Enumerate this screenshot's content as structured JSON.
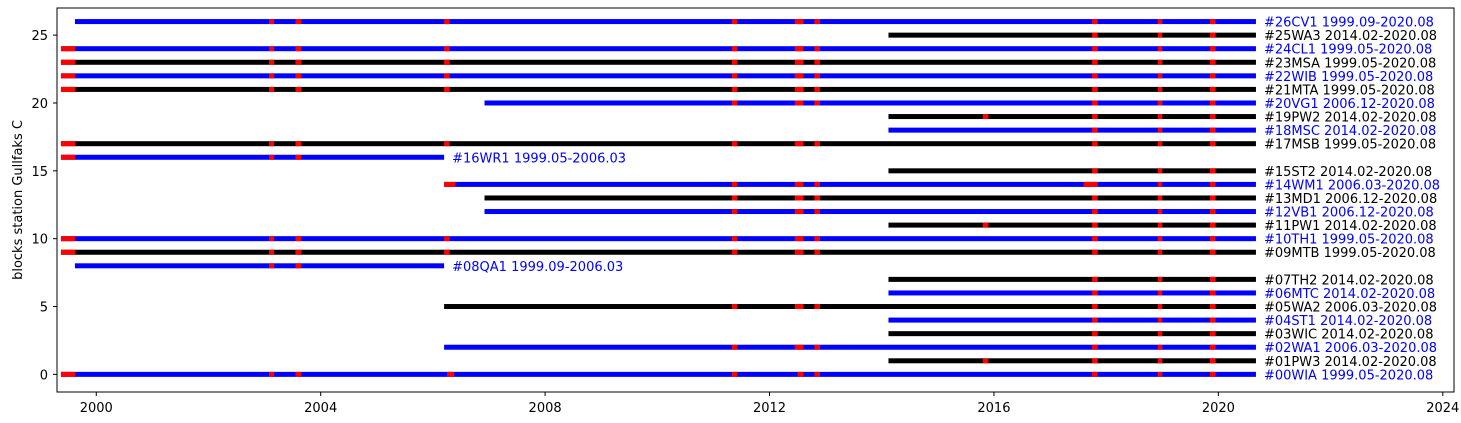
{
  "chart_data": {
    "type": "timeline",
    "ylabel": "blocks station Gullfaks C",
    "xlim": [
      1999.3,
      2024.2
    ],
    "ylim": [
      -1.3,
      27
    ],
    "xticks": [
      2000,
      2004,
      2008,
      2012,
      2016,
      2020,
      2024
    ],
    "yticks": [
      0,
      5,
      10,
      15,
      20,
      25
    ],
    "colors": {
      "blue": "#0000ff",
      "black": "#000000",
      "red": "#ff0000"
    },
    "stations": [
      {
        "y": 0,
        "label": "#00WIA 1999.05-2020.08",
        "color": "#0000ff",
        "start": 1999.37,
        "end": 2020.67,
        "gaps": [
          [
            1999.37,
            1999.62
          ],
          [
            2003.08,
            2003.17
          ],
          [
            2003.55,
            2003.65
          ],
          [
            2006.25,
            2006.38
          ],
          [
            2011.33,
            2011.42
          ],
          [
            2012.5,
            2012.6
          ],
          [
            2012.8,
            2012.9
          ],
          [
            2017.75,
            2017.85
          ],
          [
            2018.92,
            2019.0
          ],
          [
            2019.85,
            2019.95
          ]
        ]
      },
      {
        "y": 1,
        "label": "#01PW3 2014.02-2020.08",
        "color": "#000000",
        "start": 2014.12,
        "end": 2020.67,
        "gaps": [
          [
            2015.8,
            2015.9
          ],
          [
            2017.75,
            2017.85
          ],
          [
            2018.92,
            2019.0
          ],
          [
            2019.85,
            2019.95
          ]
        ]
      },
      {
        "y": 2,
        "label": "#02WA1 2006.03-2020.08",
        "color": "#0000ff",
        "start": 2006.2,
        "end": 2020.67,
        "gaps": [
          [
            2011.33,
            2011.42
          ],
          [
            2012.45,
            2012.6
          ],
          [
            2012.8,
            2012.9
          ],
          [
            2017.75,
            2017.85
          ],
          [
            2018.92,
            2019.0
          ],
          [
            2019.85,
            2019.95
          ]
        ]
      },
      {
        "y": 3,
        "label": "#03WIC 2014.02-2020.08",
        "color": "#000000",
        "start": 2014.12,
        "end": 2020.67,
        "gaps": [
          [
            2017.75,
            2017.85
          ],
          [
            2018.92,
            2019.0
          ],
          [
            2019.85,
            2019.95
          ]
        ]
      },
      {
        "y": 4,
        "label": "#04ST1 2014.02-2020.08",
        "color": "#0000ff",
        "start": 2014.12,
        "end": 2020.67,
        "gaps": [
          [
            2017.75,
            2017.85
          ],
          [
            2018.92,
            2019.0
          ],
          [
            2019.85,
            2019.95
          ]
        ]
      },
      {
        "y": 5,
        "label": "#05WA2 2006.03-2020.08",
        "color": "#000000",
        "start": 2006.2,
        "end": 2020.67,
        "gaps": [
          [
            2011.33,
            2011.42
          ],
          [
            2012.45,
            2012.6
          ],
          [
            2012.8,
            2012.9
          ],
          [
            2017.75,
            2017.85
          ],
          [
            2018.92,
            2019.0
          ],
          [
            2019.85,
            2019.95
          ]
        ]
      },
      {
        "y": 6,
        "label": "#06MTC 2014.02-2020.08",
        "color": "#0000ff",
        "start": 2014.12,
        "end": 2020.67,
        "gaps": [
          [
            2017.75,
            2017.85
          ],
          [
            2018.92,
            2019.0
          ],
          [
            2019.85,
            2019.95
          ]
        ]
      },
      {
        "y": 7,
        "label": "#07TH2 2014.02-2020.08",
        "color": "#000000",
        "start": 2014.12,
        "end": 2020.67,
        "gaps": [
          [
            2017.75,
            2017.85
          ],
          [
            2018.92,
            2019.0
          ],
          [
            2019.85,
            2019.95
          ]
        ]
      },
      {
        "y": 8,
        "label": "#08QA1 1999.09-2006.03",
        "color": "#0000ff",
        "start": 1999.62,
        "end": 2006.2,
        "gaps": [
          [
            2003.08,
            2003.17
          ],
          [
            2003.55,
            2003.65
          ]
        ]
      },
      {
        "y": 9,
        "label": "#09MTB 1999.05-2020.08",
        "color": "#000000",
        "start": 1999.37,
        "end": 2020.67,
        "gaps": [
          [
            1999.37,
            1999.62
          ],
          [
            2003.08,
            2003.17
          ],
          [
            2003.55,
            2003.65
          ],
          [
            2006.2,
            2006.3
          ],
          [
            2011.33,
            2011.42
          ],
          [
            2012.45,
            2012.6
          ],
          [
            2012.8,
            2012.9
          ],
          [
            2017.75,
            2017.85
          ],
          [
            2018.92,
            2019.0
          ],
          [
            2019.85,
            2019.95
          ]
        ]
      },
      {
        "y": 10,
        "label": "#10TH1 1999.05-2020.08",
        "color": "#0000ff",
        "start": 1999.37,
        "end": 2020.67,
        "gaps": [
          [
            1999.37,
            1999.62
          ],
          [
            2003.08,
            2003.17
          ],
          [
            2003.55,
            2003.65
          ],
          [
            2006.2,
            2006.3
          ],
          [
            2011.33,
            2011.42
          ],
          [
            2012.45,
            2012.6
          ],
          [
            2012.8,
            2012.9
          ],
          [
            2017.75,
            2017.85
          ],
          [
            2018.92,
            2019.0
          ],
          [
            2019.85,
            2019.95
          ]
        ]
      },
      {
        "y": 11,
        "label": "#11PW1 2014.02-2020.08",
        "color": "#000000",
        "start": 2014.12,
        "end": 2020.67,
        "gaps": [
          [
            2015.8,
            2015.9
          ],
          [
            2017.75,
            2017.85
          ],
          [
            2018.92,
            2019.0
          ],
          [
            2019.85,
            2019.95
          ]
        ]
      },
      {
        "y": 12,
        "label": "#12VB1 2006.12-2020.08",
        "color": "#0000ff",
        "start": 2006.92,
        "end": 2020.67,
        "gaps": [
          [
            2011.33,
            2011.42
          ],
          [
            2012.45,
            2012.6
          ],
          [
            2012.8,
            2012.9
          ],
          [
            2017.75,
            2017.85
          ],
          [
            2018.92,
            2019.0
          ],
          [
            2019.85,
            2019.95
          ]
        ]
      },
      {
        "y": 13,
        "label": "#13MD1 2006.12-2020.08",
        "color": "#000000",
        "start": 2006.92,
        "end": 2020.67,
        "gaps": [
          [
            2011.33,
            2011.42
          ],
          [
            2012.45,
            2012.6
          ],
          [
            2012.8,
            2012.9
          ],
          [
            2017.75,
            2017.85
          ],
          [
            2018.92,
            2019.0
          ],
          [
            2019.85,
            2019.95
          ]
        ]
      },
      {
        "y": 14,
        "label": "#14WM1 2006.03-2020.08",
        "color": "#0000ff",
        "start": 2006.2,
        "end": 2020.67,
        "gaps": [
          [
            2006.2,
            2006.4
          ],
          [
            2011.33,
            2011.42
          ],
          [
            2012.45,
            2012.6
          ],
          [
            2012.8,
            2012.9
          ],
          [
            2017.6,
            2017.85
          ],
          [
            2018.92,
            2019.0
          ],
          [
            2019.85,
            2019.95
          ]
        ]
      },
      {
        "y": 15,
        "label": "#15ST2 2014.02-2020.08",
        "color": "#000000",
        "start": 2014.12,
        "end": 2020.67,
        "gaps": [
          [
            2017.75,
            2017.85
          ],
          [
            2018.92,
            2019.0
          ],
          [
            2019.85,
            2019.95
          ]
        ]
      },
      {
        "y": 16,
        "label": "#16WR1 1999.05-2006.03",
        "color": "#0000ff",
        "start": 1999.37,
        "end": 2006.2,
        "gaps": [
          [
            1999.37,
            1999.62
          ],
          [
            2003.08,
            2003.17
          ],
          [
            2003.55,
            2003.65
          ]
        ]
      },
      {
        "y": 17,
        "label": "#17MSB 1999.05-2020.08",
        "color": "#000000",
        "start": 1999.37,
        "end": 2020.67,
        "gaps": [
          [
            1999.37,
            1999.62
          ],
          [
            2003.08,
            2003.17
          ],
          [
            2003.55,
            2003.65
          ],
          [
            2006.2,
            2006.3
          ],
          [
            2011.33,
            2011.42
          ],
          [
            2012.45,
            2012.6
          ],
          [
            2012.8,
            2012.9
          ],
          [
            2017.75,
            2017.85
          ],
          [
            2018.92,
            2019.0
          ],
          [
            2019.85,
            2019.95
          ]
        ]
      },
      {
        "y": 18,
        "label": "#18MSC 2014.02-2020.08",
        "color": "#0000ff",
        "start": 2014.12,
        "end": 2020.67,
        "gaps": [
          [
            2017.75,
            2017.85
          ],
          [
            2018.92,
            2019.0
          ],
          [
            2019.85,
            2019.95
          ]
        ]
      },
      {
        "y": 19,
        "label": "#19PW2 2014.02-2020.08",
        "color": "#000000",
        "start": 2014.12,
        "end": 2020.67,
        "gaps": [
          [
            2015.8,
            2015.9
          ],
          [
            2017.75,
            2017.85
          ],
          [
            2018.92,
            2019.0
          ],
          [
            2019.85,
            2019.95
          ]
        ]
      },
      {
        "y": 20,
        "label": "#20VG1 2006.12-2020.08",
        "color": "#0000ff",
        "start": 2006.92,
        "end": 2020.67,
        "gaps": [
          [
            2011.33,
            2011.42
          ],
          [
            2012.45,
            2012.6
          ],
          [
            2012.8,
            2012.9
          ],
          [
            2017.75,
            2017.85
          ],
          [
            2018.92,
            2019.0
          ],
          [
            2019.85,
            2019.95
          ]
        ]
      },
      {
        "y": 21,
        "label": "#21MTA 1999.05-2020.08",
        "color": "#000000",
        "start": 1999.37,
        "end": 2020.67,
        "gaps": [
          [
            1999.37,
            1999.62
          ],
          [
            2003.08,
            2003.17
          ],
          [
            2003.55,
            2003.65
          ],
          [
            2006.2,
            2006.3
          ],
          [
            2011.33,
            2011.42
          ],
          [
            2012.45,
            2012.6
          ],
          [
            2012.8,
            2012.9
          ],
          [
            2017.75,
            2017.85
          ],
          [
            2018.92,
            2019.0
          ],
          [
            2019.85,
            2019.95
          ]
        ]
      },
      {
        "y": 22,
        "label": "#22WIB 1999.05-2020.08",
        "color": "#0000ff",
        "start": 1999.37,
        "end": 2020.67,
        "gaps": [
          [
            1999.37,
            1999.62
          ],
          [
            2003.08,
            2003.17
          ],
          [
            2003.55,
            2003.65
          ],
          [
            2006.2,
            2006.3
          ],
          [
            2011.33,
            2011.42
          ],
          [
            2012.45,
            2012.6
          ],
          [
            2012.8,
            2012.9
          ],
          [
            2017.75,
            2017.85
          ],
          [
            2018.92,
            2019.0
          ],
          [
            2019.85,
            2019.95
          ]
        ]
      },
      {
        "y": 23,
        "label": "#23MSA 1999.05-2020.08",
        "color": "#000000",
        "start": 1999.37,
        "end": 2020.67,
        "gaps": [
          [
            1999.37,
            1999.62
          ],
          [
            2003.08,
            2003.17
          ],
          [
            2003.55,
            2003.65
          ],
          [
            2006.2,
            2006.3
          ],
          [
            2011.33,
            2011.42
          ],
          [
            2012.45,
            2012.6
          ],
          [
            2012.8,
            2012.9
          ],
          [
            2017.75,
            2017.85
          ],
          [
            2018.92,
            2019.0
          ],
          [
            2019.85,
            2019.95
          ]
        ]
      },
      {
        "y": 24,
        "label": "#24CL1 1999.05-2020.08",
        "color": "#0000ff",
        "start": 1999.37,
        "end": 2020.67,
        "gaps": [
          [
            1999.37,
            1999.62
          ],
          [
            2003.08,
            2003.17
          ],
          [
            2003.55,
            2003.65
          ],
          [
            2006.2,
            2006.3
          ],
          [
            2011.33,
            2011.42
          ],
          [
            2012.45,
            2012.6
          ],
          [
            2012.8,
            2012.9
          ],
          [
            2017.75,
            2017.85
          ],
          [
            2018.92,
            2019.0
          ],
          [
            2019.85,
            2019.95
          ]
        ]
      },
      {
        "y": 25,
        "label": "#25WA3 2014.02-2020.08",
        "color": "#000000",
        "start": 2014.12,
        "end": 2020.67,
        "gaps": [
          [
            2017.75,
            2017.85
          ],
          [
            2018.92,
            2019.0
          ],
          [
            2019.85,
            2019.95
          ]
        ]
      },
      {
        "y": 26,
        "label": "#26CV1 1999.09-2020.08",
        "color": "#0000ff",
        "start": 1999.62,
        "end": 2020.67,
        "gaps": [
          [
            2003.08,
            2003.17
          ],
          [
            2003.55,
            2003.65
          ],
          [
            2006.2,
            2006.3
          ],
          [
            2011.33,
            2011.42
          ],
          [
            2012.45,
            2012.6
          ],
          [
            2012.8,
            2012.9
          ],
          [
            2017.75,
            2017.85
          ],
          [
            2018.92,
            2019.0
          ],
          [
            2019.85,
            2019.95
          ]
        ]
      }
    ]
  }
}
